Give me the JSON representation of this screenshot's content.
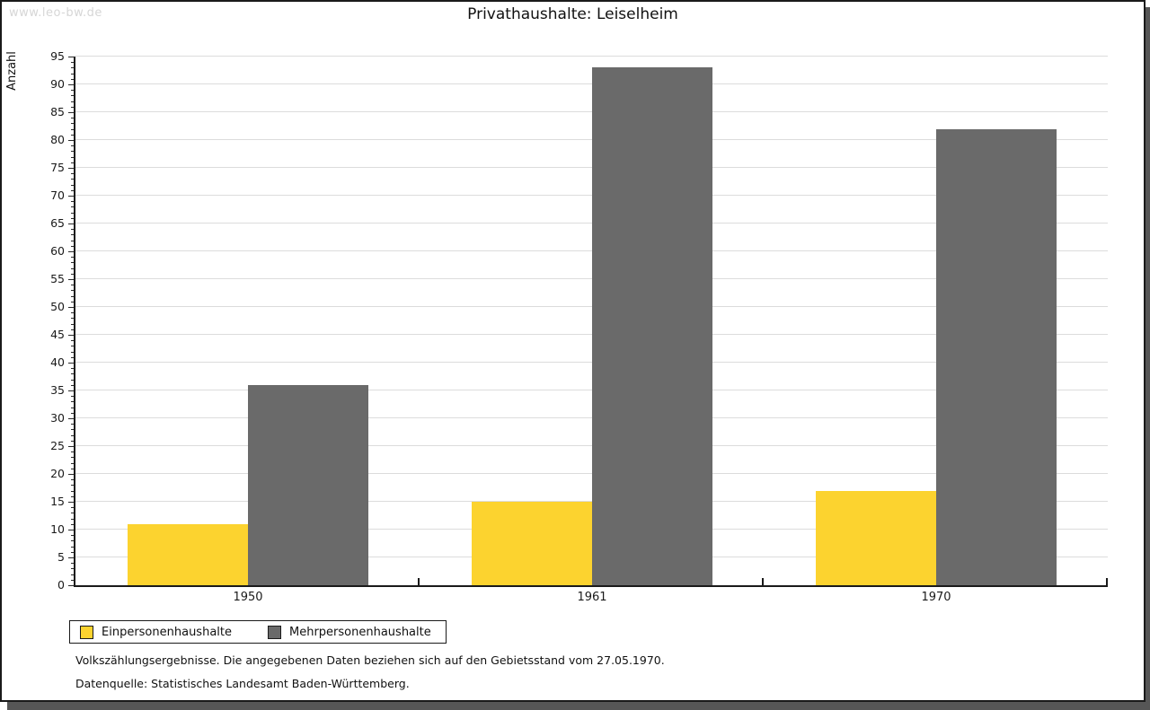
{
  "watermark": "www.leo-bw.de",
  "title": "Privathaushalte: Leiselheim",
  "chart_data": {
    "type": "bar",
    "categories": [
      "1950",
      "1961",
      "1970"
    ],
    "series": [
      {
        "name": "Einpersonenhaushalte",
        "color": "#FCD32F",
        "values": [
          11,
          15,
          17
        ]
      },
      {
        "name": "Mehrpersonenhaushalte",
        "color": "#6A6A6A",
        "values": [
          36,
          93,
          82
        ]
      }
    ],
    "title": "Privathaushalte: Leiselheim",
    "xlabel": "",
    "ylabel": "Anzahl",
    "ylim": [
      0,
      95
    ],
    "yticks": [
      0,
      5,
      10,
      15,
      20,
      25,
      30,
      35,
      40,
      45,
      50,
      55,
      60,
      65,
      70,
      75,
      80,
      85,
      90,
      95
    ],
    "minor_tick_unit": 1,
    "grid": "horizontal major gridlines on",
    "gridline_color": "#dcdcdc",
    "legend_position": "bottom-left"
  },
  "notes": [
    "Volkszählungsergebnisse. Die angegebenen Daten beziehen sich auf den Gebietsstand vom 27.05.1970.",
    "Datenquelle: Statistisches Landesamt Baden-Württemberg."
  ]
}
